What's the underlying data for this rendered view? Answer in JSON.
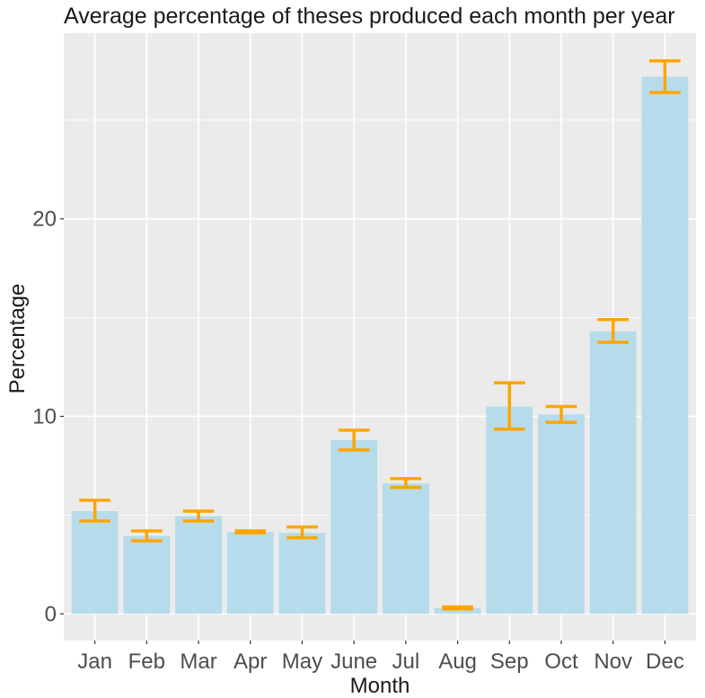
{
  "chart_data": {
    "type": "bar",
    "title": "Average percentage of theses produced each month per year",
    "xlabel": "Month",
    "ylabel": "Percentage",
    "categories": [
      "Jan",
      "Feb",
      "Mar",
      "Apr",
      "May",
      "June",
      "Jul",
      "Aug",
      "Sep",
      "Oct",
      "Nov",
      "Dec"
    ],
    "values": [
      5.2,
      3.95,
      4.95,
      4.15,
      4.1,
      8.8,
      6.6,
      0.3,
      10.5,
      10.1,
      14.3,
      27.2
    ],
    "error_low": [
      4.7,
      3.7,
      4.7,
      4.1,
      3.85,
      8.3,
      6.4,
      0.25,
      9.35,
      9.7,
      13.75,
      26.4
    ],
    "error_high": [
      5.75,
      4.2,
      5.2,
      4.2,
      4.4,
      9.3,
      6.85,
      0.35,
      11.7,
      10.5,
      14.9,
      28.0
    ],
    "yticks": [
      0,
      10,
      20
    ],
    "ylim": [
      -1.35,
      29.4
    ],
    "grid": true,
    "colors": {
      "bar": "#b6dcec",
      "error_bar": "#ffa500",
      "panel": "#ebebeb",
      "grid": "#ffffff"
    }
  }
}
